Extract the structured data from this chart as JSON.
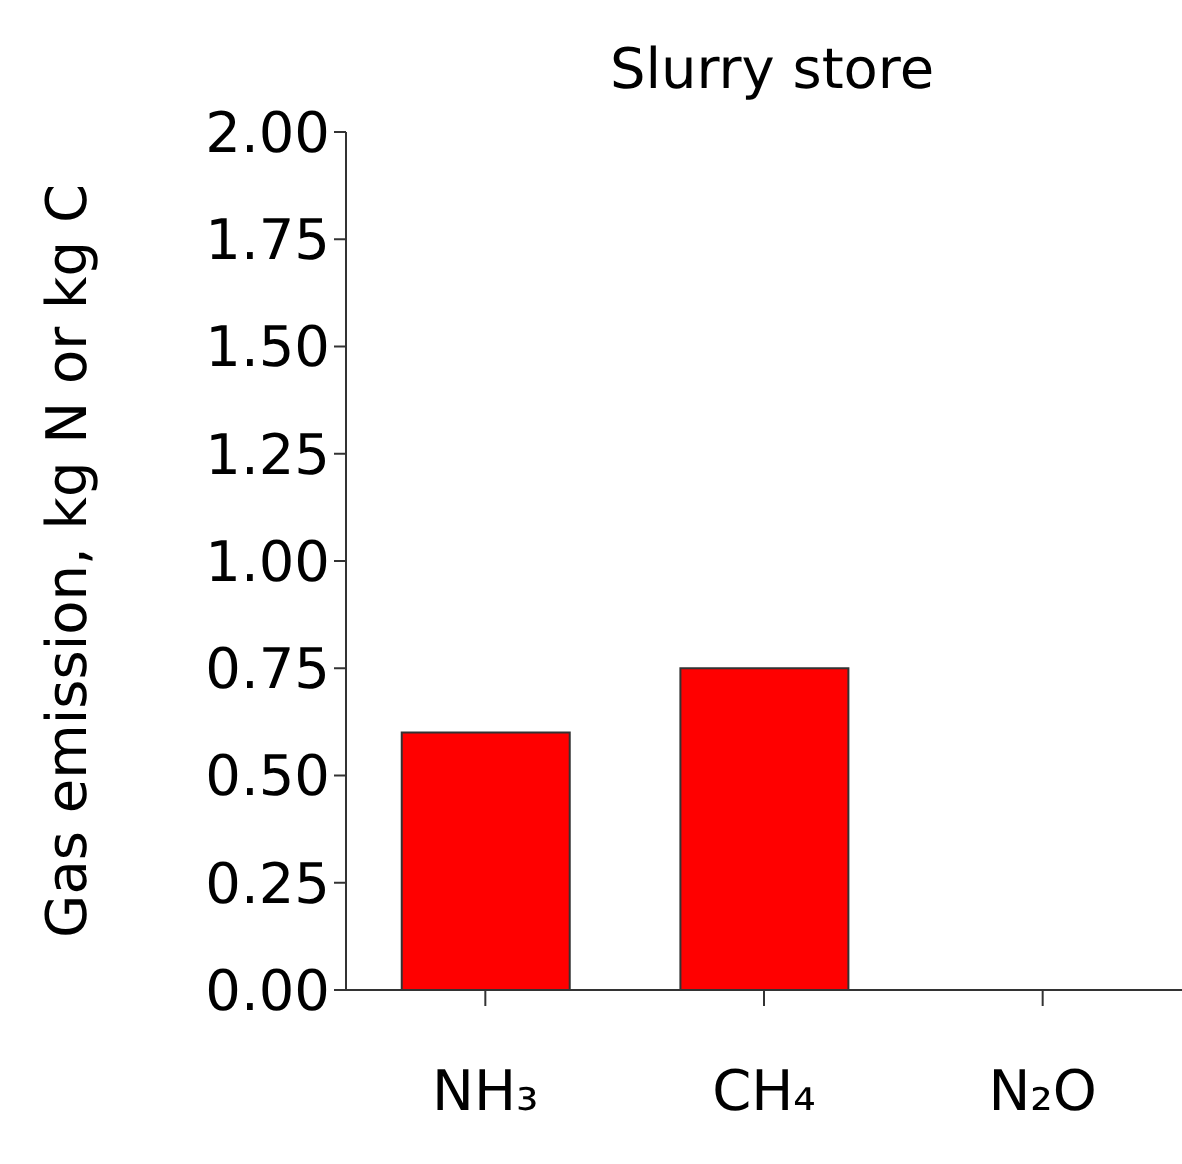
{
  "chart_data": {
    "type": "bar",
    "title": "Slurry store",
    "ylabel": "Gas emission, kg N or kg C",
    "categories": [
      "NH₃",
      "CH₄",
      "N₂O"
    ],
    "values": [
      0.6,
      0.75,
      0
    ],
    "color": "#ff0000",
    "ylim": [
      0,
      2
    ],
    "yticks": [
      {
        "value": 0,
        "label": "0.00"
      },
      {
        "value": 0.25,
        "label": "0.25"
      },
      {
        "value": 0.5,
        "label": "0.50"
      },
      {
        "value": 0.75,
        "label": "0.75"
      },
      {
        "value": 1,
        "label": "1.00"
      },
      {
        "value": 1.25,
        "label": "1.25"
      },
      {
        "value": 1.5,
        "label": "1.50"
      },
      {
        "value": 1.75,
        "label": "1.75"
      },
      {
        "value": 2,
        "label": "2.00"
      }
    ],
    "grid": false,
    "legend": false
  }
}
